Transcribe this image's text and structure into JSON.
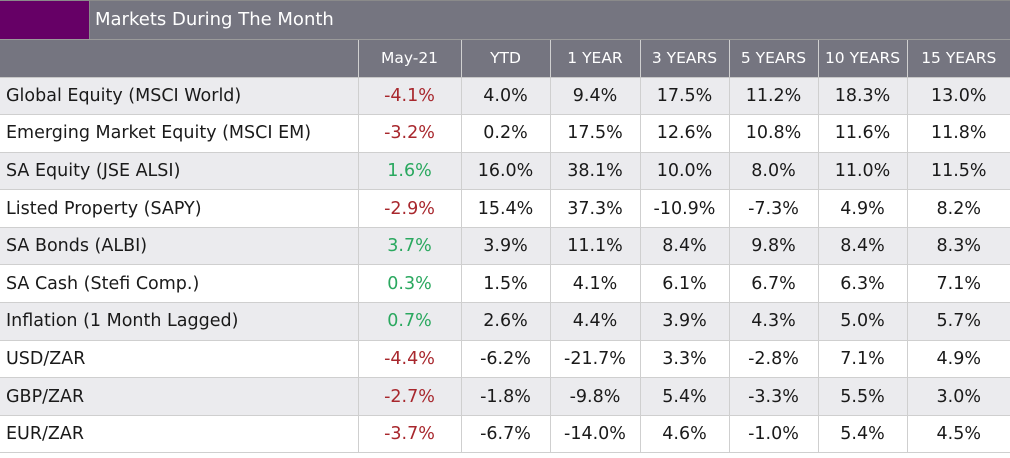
{
  "title": "Markets During The Month",
  "colors": {
    "header_bg": "#757580",
    "title_swatch": "#660066",
    "negative": "#a8272d",
    "positive": "#2aa85f",
    "shaded_row": "#ebebee"
  },
  "columns": [
    "",
    "May-21",
    "YTD",
    "1 YEAR",
    "3 YEARS",
    "5 YEARS",
    "10 YEARS",
    "15 YEARS"
  ],
  "rows": [
    {
      "name": "Global Equity (MSCI World)",
      "month_sign": "neg",
      "values": [
        "-4.1%",
        "4.0%",
        "9.4%",
        "17.5%",
        "11.2%",
        "18.3%",
        "13.0%"
      ]
    },
    {
      "name": "Emerging Market Equity (MSCI EM)",
      "month_sign": "neg",
      "values": [
        "-3.2%",
        "0.2%",
        "17.5%",
        "12.6%",
        "10.8%",
        "11.6%",
        "11.8%"
      ]
    },
    {
      "name": "SA Equity (JSE ALSI)",
      "month_sign": "pos",
      "values": [
        "1.6%",
        "16.0%",
        "38.1%",
        "10.0%",
        "8.0%",
        "11.0%",
        "11.5%"
      ]
    },
    {
      "name": "Listed Property (SAPY)",
      "month_sign": "neg",
      "values": [
        "-2.9%",
        "15.4%",
        "37.3%",
        "-10.9%",
        "-7.3%",
        "4.9%",
        "8.2%"
      ]
    },
    {
      "name": "SA Bonds (ALBI)",
      "month_sign": "pos",
      "values": [
        "3.7%",
        "3.9%",
        "11.1%",
        "8.4%",
        "9.8%",
        "8.4%",
        "8.3%"
      ]
    },
    {
      "name": "SA Cash (Stefi Comp.)",
      "month_sign": "pos",
      "values": [
        "0.3%",
        "1.5%",
        "4.1%",
        "6.1%",
        "6.7%",
        "6.3%",
        "7.1%"
      ]
    },
    {
      "name": "Inflation (1 Month Lagged)",
      "month_sign": "pos",
      "values": [
        "0.7%",
        "2.6%",
        "4.4%",
        "3.9%",
        "4.3%",
        "5.0%",
        "5.7%"
      ]
    },
    {
      "name": "USD/ZAR",
      "month_sign": "neg",
      "values": [
        "-4.4%",
        "-6.2%",
        "-21.7%",
        "3.3%",
        "-2.8%",
        "7.1%",
        "4.9%"
      ]
    },
    {
      "name": "GBP/ZAR",
      "month_sign": "neg",
      "values": [
        "-2.7%",
        "-1.8%",
        "-9.8%",
        "5.4%",
        "-3.3%",
        "5.5%",
        "3.0%"
      ]
    },
    {
      "name": "EUR/ZAR",
      "month_sign": "neg",
      "values": [
        "-3.7%",
        "-6.7%",
        "-14.0%",
        "4.6%",
        "-1.0%",
        "5.4%",
        "4.5%"
      ]
    }
  ]
}
